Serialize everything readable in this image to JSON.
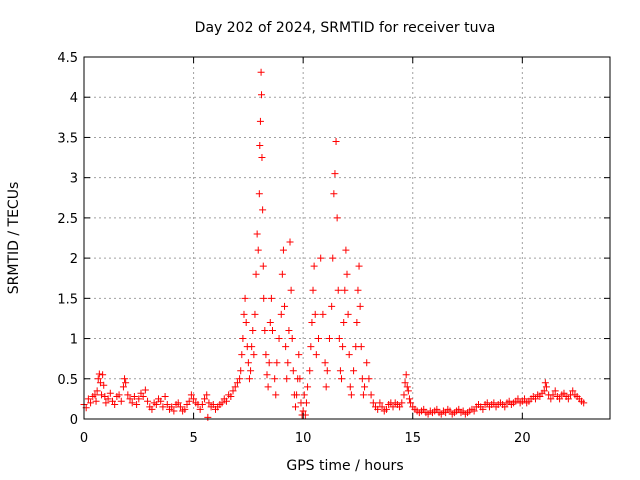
{
  "chart_data": {
    "type": "scatter",
    "title": "Day 202 of 2024, SRMTID for receiver tuva",
    "xlabel": "GPS time / hours",
    "ylabel": "SRMTID / TECUs",
    "xlim": [
      0,
      24
    ],
    "ylim": [
      0,
      4.5
    ],
    "grid": true,
    "marker": "+",
    "marker_color": "#ff0000",
    "x_ticks": [
      0,
      5,
      10,
      15,
      20
    ],
    "x_tick_labels": [
      "0",
      "5",
      "10",
      "15",
      "20"
    ],
    "y_ticks": [
      0,
      0.5,
      1,
      1.5,
      2,
      2.5,
      3,
      3.5,
      4,
      4.5
    ],
    "y_tick_labels": [
      "0",
      "0.5",
      "1",
      "1.5",
      "2",
      "2.5",
      "3",
      "3.5",
      "4",
      "4.5"
    ],
    "series": [
      {
        "name": "SRMTID",
        "points": [
          [
            0.0,
            0.18
          ],
          [
            0.1,
            0.14
          ],
          [
            0.2,
            0.25
          ],
          [
            0.3,
            0.2
          ],
          [
            0.4,
            0.28
          ],
          [
            0.5,
            0.3
          ],
          [
            0.55,
            0.22
          ],
          [
            0.6,
            0.35
          ],
          [
            0.65,
            0.5
          ],
          [
            0.7,
            0.56
          ],
          [
            0.75,
            0.45
          ],
          [
            0.8,
            0.3
          ],
          [
            0.85,
            0.55
          ],
          [
            0.9,
            0.42
          ],
          [
            0.95,
            0.28
          ],
          [
            1.0,
            0.2
          ],
          [
            1.1,
            0.25
          ],
          [
            1.2,
            0.32
          ],
          [
            1.3,
            0.22
          ],
          [
            1.4,
            0.18
          ],
          [
            1.5,
            0.28
          ],
          [
            1.6,
            0.3
          ],
          [
            1.7,
            0.22
          ],
          [
            1.8,
            0.4
          ],
          [
            1.85,
            0.5
          ],
          [
            1.9,
            0.45
          ],
          [
            2.0,
            0.3
          ],
          [
            2.1,
            0.25
          ],
          [
            2.2,
            0.2
          ],
          [
            2.3,
            0.28
          ],
          [
            2.4,
            0.18
          ],
          [
            2.5,
            0.25
          ],
          [
            2.6,
            0.32
          ],
          [
            2.7,
            0.28
          ],
          [
            2.8,
            0.36
          ],
          [
            2.9,
            0.22
          ],
          [
            3.0,
            0.15
          ],
          [
            3.1,
            0.12
          ],
          [
            3.2,
            0.2
          ],
          [
            3.3,
            0.18
          ],
          [
            3.4,
            0.25
          ],
          [
            3.5,
            0.22
          ],
          [
            3.6,
            0.15
          ],
          [
            3.7,
            0.28
          ],
          [
            3.8,
            0.18
          ],
          [
            3.9,
            0.12
          ],
          [
            4.0,
            0.15
          ],
          [
            4.1,
            0.1
          ],
          [
            4.2,
            0.18
          ],
          [
            4.3,
            0.2
          ],
          [
            4.4,
            0.15
          ],
          [
            4.5,
            0.1
          ],
          [
            4.6,
            0.12
          ],
          [
            4.7,
            0.18
          ],
          [
            4.8,
            0.22
          ],
          [
            4.9,
            0.3
          ],
          [
            5.0,
            0.25
          ],
          [
            5.1,
            0.2
          ],
          [
            5.2,
            0.18
          ],
          [
            5.3,
            0.12
          ],
          [
            5.4,
            0.18
          ],
          [
            5.5,
            0.25
          ],
          [
            5.6,
            0.3
          ],
          [
            5.65,
            0.02
          ],
          [
            5.7,
            0.2
          ],
          [
            5.8,
            0.15
          ],
          [
            5.9,
            0.18
          ],
          [
            6.0,
            0.12
          ],
          [
            6.1,
            0.15
          ],
          [
            6.2,
            0.18
          ],
          [
            6.3,
            0.2
          ],
          [
            6.4,
            0.25
          ],
          [
            6.5,
            0.22
          ],
          [
            6.6,
            0.3
          ],
          [
            6.7,
            0.28
          ],
          [
            6.8,
            0.35
          ],
          [
            6.9,
            0.4
          ],
          [
            7.0,
            0.45
          ],
          [
            7.1,
            0.5
          ],
          [
            7.15,
            0.6
          ],
          [
            7.2,
            0.8
          ],
          [
            7.25,
            1.0
          ],
          [
            7.3,
            1.3
          ],
          [
            7.35,
            1.5
          ],
          [
            7.4,
            1.2
          ],
          [
            7.45,
            0.9
          ],
          [
            7.5,
            0.7
          ],
          [
            7.55,
            0.5
          ],
          [
            7.6,
            0.6
          ],
          [
            7.65,
            0.9
          ],
          [
            7.7,
            1.1
          ],
          [
            7.75,
            0.8
          ],
          [
            7.8,
            1.3
          ],
          [
            7.85,
            1.8
          ],
          [
            7.9,
            2.3
          ],
          [
            7.95,
            2.1
          ],
          [
            8.0,
            2.8
          ],
          [
            8.02,
            3.4
          ],
          [
            8.05,
            3.7
          ],
          [
            8.08,
            4.31
          ],
          [
            8.1,
            4.03
          ],
          [
            8.12,
            3.25
          ],
          [
            8.15,
            2.6
          ],
          [
            8.18,
            1.9
          ],
          [
            8.2,
            1.5
          ],
          [
            8.25,
            1.1
          ],
          [
            8.3,
            0.8
          ],
          [
            8.35,
            0.55
          ],
          [
            8.4,
            0.4
          ],
          [
            8.45,
            0.7
          ],
          [
            8.5,
            1.2
          ],
          [
            8.55,
            1.5
          ],
          [
            8.6,
            1.1
          ],
          [
            8.7,
            0.5
          ],
          [
            8.75,
            0.3
          ],
          [
            8.8,
            0.7
          ],
          [
            8.9,
            1.0
          ],
          [
            9.0,
            1.3
          ],
          [
            9.05,
            1.8
          ],
          [
            9.1,
            2.1
          ],
          [
            9.15,
            1.4
          ],
          [
            9.2,
            0.9
          ],
          [
            9.25,
            0.5
          ],
          [
            9.3,
            0.7
          ],
          [
            9.35,
            1.1
          ],
          [
            9.4,
            2.2
          ],
          [
            9.45,
            1.6
          ],
          [
            9.5,
            1.0
          ],
          [
            9.55,
            0.6
          ],
          [
            9.6,
            0.3
          ],
          [
            9.65,
            0.15
          ],
          [
            9.7,
            0.3
          ],
          [
            9.75,
            0.5
          ],
          [
            9.8,
            0.8
          ],
          [
            9.85,
            0.5
          ],
          [
            9.9,
            0.2
          ],
          [
            9.95,
            0.05
          ],
          [
            10.0,
            0.1
          ],
          [
            10.05,
            0.3
          ],
          [
            10.1,
            0.05
          ],
          [
            10.15,
            0.2
          ],
          [
            10.2,
            0.4
          ],
          [
            10.3,
            0.6
          ],
          [
            10.35,
            0.9
          ],
          [
            10.4,
            1.2
          ],
          [
            10.45,
            1.6
          ],
          [
            10.5,
            1.9
          ],
          [
            10.55,
            1.3
          ],
          [
            10.6,
            0.8
          ],
          [
            10.7,
            1.0
          ],
          [
            10.8,
            2.0
          ],
          [
            10.9,
            1.3
          ],
          [
            11.0,
            0.7
          ],
          [
            11.05,
            0.4
          ],
          [
            11.1,
            0.6
          ],
          [
            11.2,
            1.0
          ],
          [
            11.3,
            1.4
          ],
          [
            11.35,
            2.0
          ],
          [
            11.4,
            2.8
          ],
          [
            11.45,
            3.05
          ],
          [
            11.5,
            3.45
          ],
          [
            11.55,
            2.5
          ],
          [
            11.6,
            1.6
          ],
          [
            11.65,
            1.0
          ],
          [
            11.7,
            0.6
          ],
          [
            11.75,
            0.5
          ],
          [
            11.8,
            0.9
          ],
          [
            11.85,
            1.2
          ],
          [
            11.9,
            1.6
          ],
          [
            11.95,
            2.1
          ],
          [
            12.0,
            1.8
          ],
          [
            12.05,
            1.3
          ],
          [
            12.1,
            0.8
          ],
          [
            12.15,
            0.4
          ],
          [
            12.2,
            0.3
          ],
          [
            12.3,
            0.6
          ],
          [
            12.4,
            0.9
          ],
          [
            12.45,
            1.2
          ],
          [
            12.5,
            1.6
          ],
          [
            12.55,
            1.9
          ],
          [
            12.6,
            1.4
          ],
          [
            12.65,
            0.9
          ],
          [
            12.7,
            0.5
          ],
          [
            12.75,
            0.3
          ],
          [
            12.8,
            0.4
          ],
          [
            12.9,
            0.7
          ],
          [
            13.0,
            0.5
          ],
          [
            13.1,
            0.3
          ],
          [
            13.2,
            0.2
          ],
          [
            13.3,
            0.15
          ],
          [
            13.4,
            0.12
          ],
          [
            13.5,
            0.2
          ],
          [
            13.6,
            0.15
          ],
          [
            13.7,
            0.1
          ],
          [
            13.8,
            0.12
          ],
          [
            13.9,
            0.18
          ],
          [
            14.0,
            0.2
          ],
          [
            14.1,
            0.15
          ],
          [
            14.2,
            0.2
          ],
          [
            14.3,
            0.18
          ],
          [
            14.4,
            0.15
          ],
          [
            14.5,
            0.2
          ],
          [
            14.6,
            0.3
          ],
          [
            14.65,
            0.45
          ],
          [
            14.7,
            0.55
          ],
          [
            14.75,
            0.4
          ],
          [
            14.8,
            0.35
          ],
          [
            14.85,
            0.25
          ],
          [
            14.9,
            0.2
          ],
          [
            15.0,
            0.15
          ],
          [
            15.1,
            0.12
          ],
          [
            15.2,
            0.1
          ],
          [
            15.3,
            0.08
          ],
          [
            15.4,
            0.1
          ],
          [
            15.5,
            0.12
          ],
          [
            15.6,
            0.08
          ],
          [
            15.7,
            0.06
          ],
          [
            15.8,
            0.1
          ],
          [
            15.9,
            0.08
          ],
          [
            16.0,
            0.1
          ],
          [
            16.1,
            0.12
          ],
          [
            16.2,
            0.08
          ],
          [
            16.3,
            0.06
          ],
          [
            16.4,
            0.1
          ],
          [
            16.5,
            0.08
          ],
          [
            16.6,
            0.12
          ],
          [
            16.7,
            0.1
          ],
          [
            16.8,
            0.06
          ],
          [
            16.9,
            0.08
          ],
          [
            17.0,
            0.1
          ],
          [
            17.1,
            0.12
          ],
          [
            17.2,
            0.08
          ],
          [
            17.3,
            0.1
          ],
          [
            17.4,
            0.06
          ],
          [
            17.5,
            0.08
          ],
          [
            17.6,
            0.1
          ],
          [
            17.7,
            0.12
          ],
          [
            17.8,
            0.1
          ],
          [
            17.9,
            0.15
          ],
          [
            18.0,
            0.18
          ],
          [
            18.1,
            0.15
          ],
          [
            18.2,
            0.12
          ],
          [
            18.3,
            0.18
          ],
          [
            18.4,
            0.2
          ],
          [
            18.5,
            0.15
          ],
          [
            18.6,
            0.18
          ],
          [
            18.7,
            0.2
          ],
          [
            18.8,
            0.15
          ],
          [
            18.9,
            0.18
          ],
          [
            19.0,
            0.2
          ],
          [
            19.1,
            0.18
          ],
          [
            19.2,
            0.15
          ],
          [
            19.3,
            0.2
          ],
          [
            19.4,
            0.22
          ],
          [
            19.5,
            0.18
          ],
          [
            19.6,
            0.2
          ],
          [
            19.7,
            0.22
          ],
          [
            19.8,
            0.25
          ],
          [
            19.9,
            0.2
          ],
          [
            20.0,
            0.22
          ],
          [
            20.1,
            0.25
          ],
          [
            20.2,
            0.2
          ],
          [
            20.3,
            0.22
          ],
          [
            20.4,
            0.25
          ],
          [
            20.5,
            0.28
          ],
          [
            20.6,
            0.25
          ],
          [
            20.7,
            0.3
          ],
          [
            20.8,
            0.28
          ],
          [
            20.9,
            0.32
          ],
          [
            21.0,
            0.35
          ],
          [
            21.05,
            0.45
          ],
          [
            21.1,
            0.4
          ],
          [
            21.2,
            0.3
          ],
          [
            21.3,
            0.25
          ],
          [
            21.4,
            0.3
          ],
          [
            21.5,
            0.35
          ],
          [
            21.6,
            0.28
          ],
          [
            21.7,
            0.25
          ],
          [
            21.8,
            0.3
          ],
          [
            21.9,
            0.32
          ],
          [
            22.0,
            0.28
          ],
          [
            22.1,
            0.25
          ],
          [
            22.2,
            0.3
          ],
          [
            22.3,
            0.35
          ],
          [
            22.4,
            0.3
          ],
          [
            22.5,
            0.28
          ],
          [
            22.6,
            0.25
          ],
          [
            22.7,
            0.22
          ],
          [
            22.8,
            0.2
          ]
        ]
      }
    ]
  }
}
